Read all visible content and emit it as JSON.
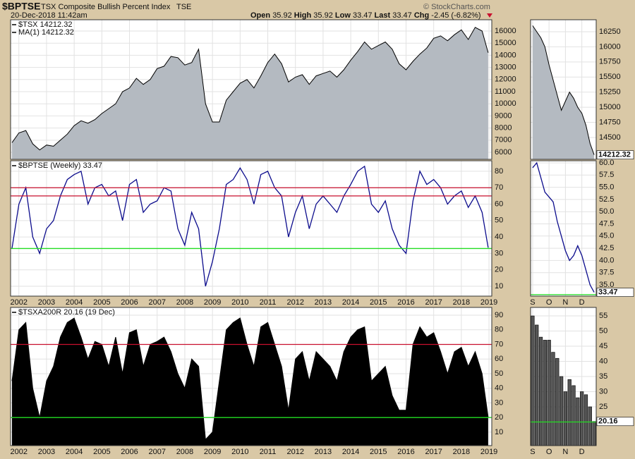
{
  "header": {
    "symbol": "$BPTSE",
    "name": "TSX Composite Bullish Percent Index",
    "exchange": "TSE",
    "date": "20-Dec-2018 11:42am",
    "credit": "© StockCharts.com",
    "quote": [
      {
        "label": "Open",
        "value": 35.92
      },
      {
        "label": "High",
        "value": 35.92
      },
      {
        "label": "Low",
        "value": 33.47
      },
      {
        "label": "Last",
        "value": 33.47
      },
      {
        "label": "Chg",
        "value": "-2.45 (-6.82%)"
      }
    ]
  },
  "chart_data": [
    {
      "type": "area",
      "legend": [
        "$TSX 14212.32",
        "MA(1) 14212.32"
      ],
      "x": [
        2001.75,
        2002,
        2002.25,
        2002.5,
        2002.75,
        2003,
        2003.25,
        2003.5,
        2003.75,
        2004,
        2004.25,
        2004.5,
        2004.75,
        2005,
        2005.25,
        2005.5,
        2005.75,
        2006,
        2006.25,
        2006.5,
        2006.75,
        2007,
        2007.25,
        2007.5,
        2007.75,
        2008,
        2008.25,
        2008.5,
        2008.75,
        2009,
        2009.25,
        2009.5,
        2009.75,
        2010,
        2010.25,
        2010.5,
        2010.75,
        2011,
        2011.25,
        2011.5,
        2011.75,
        2012,
        2012.25,
        2012.5,
        2012.75,
        2013,
        2013.25,
        2013.5,
        2013.75,
        2014,
        2014.25,
        2014.5,
        2014.75,
        2015,
        2015.25,
        2015.5,
        2015.75,
        2016,
        2016.25,
        2016.5,
        2016.75,
        2017,
        2017.25,
        2017.5,
        2017.75,
        2018,
        2018.25,
        2018.5,
        2018.75,
        2018.97
      ],
      "values": [
        6800,
        7600,
        7800,
        6700,
        6200,
        6600,
        6500,
        7000,
        7500,
        8200,
        8600,
        8400,
        8700,
        9200,
        9600,
        10000,
        11000,
        11300,
        12100,
        11600,
        12000,
        12900,
        13100,
        13900,
        13800,
        13200,
        13400,
        14500,
        10000,
        8500,
        8500,
        10300,
        11000,
        11700,
        12000,
        11300,
        12300,
        13400,
        14100,
        13300,
        11800,
        12200,
        12400,
        11600,
        12300,
        12500,
        12700,
        12200,
        12800,
        13600,
        14300,
        15100,
        14500,
        14800,
        15100,
        14500,
        13300,
        12800,
        13500,
        14100,
        14600,
        15400,
        15600,
        15200,
        15700,
        16100,
        15300,
        16300,
        16000,
        14212.32
      ],
      "color": "#b4bac1",
      "xlim": [
        2001.7,
        2019.1
      ],
      "xticks": [
        2002,
        2003,
        2004,
        2005,
        2006,
        2007,
        2008,
        2009,
        2010,
        2011,
        2012,
        2013,
        2014,
        2015,
        2016,
        2017,
        2018,
        2019
      ],
      "ylim": [
        5420,
        16930
      ],
      "yticks": [
        6000,
        7000,
        8000,
        9000,
        10000,
        11000,
        12000,
        13000,
        14000,
        15000,
        16000
      ]
    },
    {
      "type": "line",
      "legend": [
        "$BPTSE (Weekly) 33.47"
      ],
      "x": [
        2001.75,
        2002,
        2002.25,
        2002.5,
        2002.75,
        2003,
        2003.25,
        2003.5,
        2003.75,
        2004,
        2004.25,
        2004.5,
        2004.75,
        2005,
        2005.25,
        2005.5,
        2005.75,
        2006,
        2006.25,
        2006.5,
        2006.75,
        2007,
        2007.25,
        2007.5,
        2007.75,
        2008,
        2008.25,
        2008.5,
        2008.75,
        2009,
        2009.25,
        2009.5,
        2009.75,
        2010,
        2010.25,
        2010.5,
        2010.75,
        2011,
        2011.25,
        2011.5,
        2011.75,
        2012,
        2012.25,
        2012.5,
        2012.75,
        2013,
        2013.25,
        2013.5,
        2013.75,
        2014,
        2014.25,
        2014.5,
        2014.75,
        2015,
        2015.25,
        2015.5,
        2015.75,
        2016,
        2016.25,
        2016.5,
        2016.75,
        2017,
        2017.25,
        2017.5,
        2017.75,
        2018,
        2018.25,
        2018.5,
        2018.75,
        2018.97
      ],
      "values": [
        33,
        60,
        70,
        40,
        30,
        45,
        50,
        65,
        75,
        78,
        80,
        60,
        70,
        72,
        65,
        68,
        50,
        72,
        75,
        55,
        60,
        62,
        70,
        68,
        45,
        35,
        55,
        45,
        10,
        25,
        45,
        72,
        75,
        82,
        75,
        60,
        78,
        80,
        70,
        65,
        40,
        55,
        65,
        45,
        60,
        65,
        60,
        55,
        65,
        72,
        80,
        83,
        60,
        55,
        62,
        45,
        35,
        30,
        62,
        80,
        72,
        75,
        70,
        60,
        65,
        68,
        58,
        65,
        55,
        33.47
      ],
      "color": "#0b0b8c",
      "xlim": [
        2001.7,
        2019.1
      ],
      "xticks": [
        2002,
        2003,
        2004,
        2005,
        2006,
        2007,
        2008,
        2009,
        2010,
        2011,
        2012,
        2013,
        2014,
        2015,
        2016,
        2017,
        2018,
        2019
      ],
      "ylim": [
        4,
        86.4
      ],
      "yticks": [
        10,
        20,
        30,
        40,
        50,
        60,
        70,
        80
      ],
      "hlines": [
        {
          "value": 70,
          "color": "#c8102e"
        },
        {
          "value": 65,
          "color": "#c8102e"
        },
        {
          "value": 33,
          "color": "#22dd22"
        }
      ]
    },
    {
      "type": "area",
      "legend": [
        "$TSXA200R 20.16 (19 Dec)"
      ],
      "x": [
        2001.75,
        2002,
        2002.25,
        2002.5,
        2002.75,
        2003,
        2003.25,
        2003.5,
        2003.75,
        2004,
        2004.25,
        2004.5,
        2004.75,
        2005,
        2005.25,
        2005.5,
        2005.75,
        2006,
        2006.25,
        2006.5,
        2006.75,
        2007,
        2007.25,
        2007.5,
        2007.75,
        2008,
        2008.25,
        2008.5,
        2008.75,
        2009,
        2009.25,
        2009.5,
        2009.75,
        2010,
        2010.25,
        2010.5,
        2010.75,
        2011,
        2011.25,
        2011.5,
        2011.75,
        2012,
        2012.25,
        2012.5,
        2012.75,
        2013,
        2013.25,
        2013.5,
        2013.75,
        2014,
        2014.25,
        2014.5,
        2014.75,
        2015,
        2015.25,
        2015.5,
        2015.75,
        2016,
        2016.25,
        2016.5,
        2016.75,
        2017,
        2017.25,
        2017.5,
        2017.75,
        2018,
        2018.25,
        2018.5,
        2018.75,
        2018.97
      ],
      "values": [
        45,
        80,
        85,
        40,
        20,
        45,
        55,
        75,
        85,
        88,
        75,
        60,
        72,
        70,
        55,
        75,
        50,
        78,
        80,
        55,
        70,
        72,
        75,
        65,
        50,
        40,
        60,
        55,
        5,
        10,
        45,
        80,
        85,
        88,
        70,
        55,
        82,
        85,
        70,
        55,
        25,
        60,
        65,
        45,
        65,
        60,
        55,
        45,
        65,
        75,
        80,
        82,
        45,
        50,
        55,
        35,
        25,
        25,
        70,
        82,
        75,
        78,
        65,
        50,
        65,
        68,
        55,
        65,
        50,
        20.16
      ],
      "color": "#000000",
      "xlim": [
        2001.7,
        2019.1
      ],
      "xticks": [
        2002,
        2003,
        2004,
        2005,
        2006,
        2007,
        2008,
        2009,
        2010,
        2011,
        2012,
        2013,
        2014,
        2015,
        2016,
        2017,
        2018,
        2019
      ],
      "ylim": [
        0.8,
        95.3
      ],
      "yticks": [
        10,
        20,
        30,
        40,
        50,
        60,
        70,
        80,
        90
      ],
      "hlines": [
        {
          "value": 70,
          "color": "#c8102e"
        },
        {
          "value": 20,
          "color": "#22dd22"
        }
      ]
    },
    {
      "type": "area",
      "categories": [
        "S",
        null,
        null,
        null,
        "O",
        null,
        null,
        null,
        "N",
        null,
        null,
        null,
        "D",
        null,
        null,
        null
      ],
      "values": [
        16350,
        16250,
        16150,
        16000,
        15700,
        15450,
        15200,
        14950,
        15100,
        15250,
        15150,
        15000,
        14900,
        14700,
        14400,
        14212.32
      ],
      "color": "#b4bac1",
      "ylim": [
        14138,
        16448
      ],
      "yticks": [
        14500,
        14750,
        15000,
        15250,
        15500,
        15750,
        16000,
        16250
      ],
      "last_value": 14212.32
    },
    {
      "type": "line",
      "categories": [
        "S",
        null,
        null,
        null,
        "O",
        null,
        null,
        null,
        "N",
        null,
        null,
        null,
        "D",
        null,
        null,
        null
      ],
      "values": [
        59,
        60,
        57,
        54,
        53,
        52,
        48,
        45,
        42,
        40,
        41,
        43,
        41,
        38,
        35,
        33.47
      ],
      "color": "#0b0b8c",
      "ylim": [
        32.69,
        60.43
      ],
      "yticks": [
        {
          "value": 35,
          "label": "35.0"
        },
        {
          "value": 37.5,
          "label": "37.5"
        },
        {
          "value": 40,
          "label": "40.0"
        },
        {
          "value": 42.5,
          "label": "42.5"
        },
        {
          "value": 45,
          "label": "45.0"
        },
        {
          "value": 47.5,
          "label": "47.5"
        },
        {
          "value": 50,
          "label": "50.0"
        },
        {
          "value": 52.5,
          "label": "52.5"
        },
        {
          "value": 55,
          "label": "55.0"
        },
        {
          "value": 57.5,
          "label": "57.5"
        },
        {
          "value": 60,
          "label": "60.0"
        }
      ],
      "hlines": [
        {
          "value": 33,
          "color": "#22dd22"
        }
      ],
      "last_value": 33.47
    },
    {
      "type": "bar",
      "categories": [
        "S",
        null,
        null,
        null,
        "O",
        null,
        null,
        null,
        "N",
        null,
        null,
        null,
        "D",
        null,
        null,
        null
      ],
      "values": [
        55,
        52,
        48,
        47,
        47,
        43,
        41,
        35,
        30,
        34,
        32,
        28,
        30,
        29,
        25,
        20.16
      ],
      "color": "#555555",
      "ylim": [
        12.2,
        57.8
      ],
      "yticks": [
        25,
        30,
        35,
        40,
        45,
        50,
        55
      ],
      "hlines": [
        {
          "value": 20,
          "color": "#22dd22"
        }
      ],
      "last_value": 20.16
    }
  ]
}
